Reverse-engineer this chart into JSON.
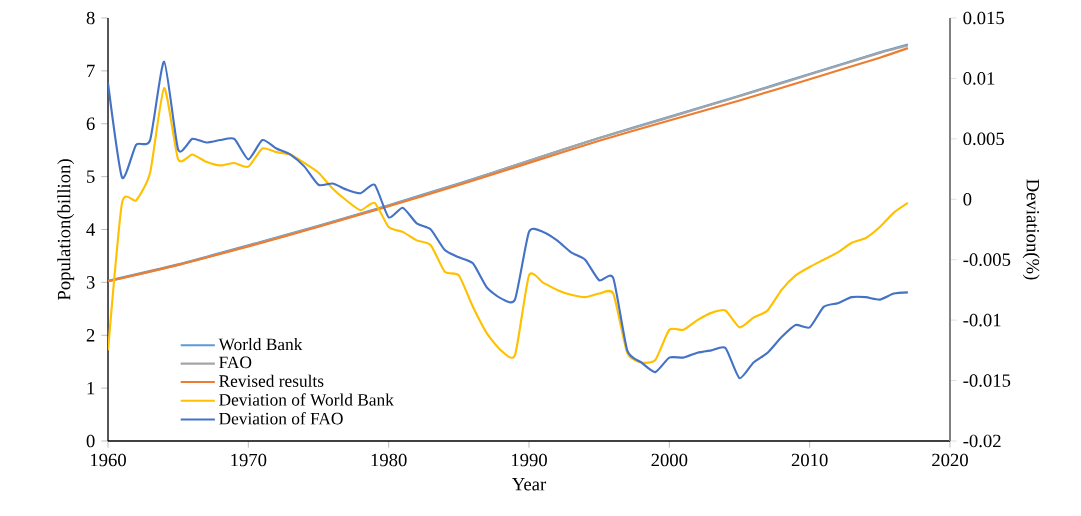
{
  "chart_data": {
    "type": "line",
    "xlabel": "Year",
    "ylabel": "Population(billion)",
    "y2label": "Deviation(%)",
    "xlim": [
      1960,
      2020
    ],
    "xticks": [
      1960,
      1970,
      1980,
      1990,
      2000,
      2010,
      2020
    ],
    "ylim": [
      0,
      8
    ],
    "yticks": [
      0,
      1,
      2,
      3,
      4,
      5,
      6,
      7,
      8
    ],
    "y2lim": [
      -0.02,
      0.015
    ],
    "y2ticks": [
      -0.02,
      -0.015,
      -0.01,
      -0.005,
      0,
      0.005,
      0.01,
      0.015
    ],
    "legend": "bottom left",
    "marker": "none",
    "line_style": "solid",
    "series": [
      {
        "name": "World Bank",
        "color": "#5b9bd5",
        "x": [
          1960,
          1965,
          1970,
          1975,
          1980,
          1985,
          1990,
          1995,
          2000,
          2005,
          2010,
          2015,
          2017
        ],
        "values": [
          3.03,
          3.34,
          3.7,
          4.07,
          4.46,
          4.87,
          5.3,
          5.73,
          6.13,
          6.53,
          6.94,
          7.35,
          7.5
        ]
      },
      {
        "name": "FAO",
        "color": "#a5a5a5",
        "x": [
          1960,
          1965,
          1970,
          1975,
          1980,
          1985,
          1990,
          1995,
          2000,
          2005,
          2010,
          2015,
          2017
        ],
        "values": [
          3.02,
          3.33,
          3.69,
          4.06,
          4.45,
          4.86,
          5.3,
          5.73,
          6.12,
          6.52,
          6.93,
          7.34,
          7.48
        ]
      },
      {
        "name": "Revised results",
        "color": "#ed7d31",
        "x": [
          1960,
          1965,
          1970,
          1975,
          1980,
          1985,
          1990,
          1995,
          2000,
          2005,
          2010,
          2015,
          2017
        ],
        "values": [
          3.02,
          3.33,
          3.68,
          4.05,
          4.44,
          4.84,
          5.26,
          5.68,
          6.06,
          6.44,
          6.84,
          7.25,
          7.43
        ]
      },
      {
        "name": "Deviation of World Bank",
        "color": "#ffc000",
        "axis": "y2",
        "x": [
          1960,
          1961,
          1962,
          1963,
          1964,
          1965,
          1966,
          1967,
          1968,
          1969,
          1970,
          1971,
          1972,
          1973,
          1974,
          1975,
          1976,
          1977,
          1978,
          1979,
          1980,
          1981,
          1982,
          1983,
          1984,
          1985,
          1986,
          1987,
          1988,
          1989,
          1990,
          1991,
          1992,
          1993,
          1994,
          1995,
          1996,
          1997,
          1998,
          1999,
          2000,
          2001,
          2002,
          2003,
          2004,
          2005,
          2006,
          2007,
          2008,
          2009,
          2010,
          2011,
          2012,
          2013,
          2014,
          2015,
          2016,
          2017
        ],
        "values": [
          -0.0125,
          -0.0003,
          -0.0001,
          0.0022,
          0.0092,
          0.0033,
          0.0037,
          0.0031,
          0.0028,
          0.003,
          0.0027,
          0.0042,
          0.0039,
          0.0037,
          0.003,
          0.0022,
          0.0009,
          -0.0001,
          -0.0009,
          -0.0003,
          -0.0023,
          -0.0027,
          -0.0034,
          -0.0038,
          -0.006,
          -0.0063,
          -0.0089,
          -0.0111,
          -0.0125,
          -0.0129,
          -0.0063,
          -0.0069,
          -0.0075,
          -0.0079,
          -0.0081,
          -0.0078,
          -0.0078,
          -0.0127,
          -0.0135,
          -0.0133,
          -0.0108,
          -0.0108,
          -0.01,
          -0.0094,
          -0.0092,
          -0.0106,
          -0.0098,
          -0.0092,
          -0.0075,
          -0.0063,
          -0.0056,
          -0.005,
          -0.0044,
          -0.0036,
          -0.0032,
          -0.0023,
          -0.0011,
          -0.0003
        ]
      },
      {
        "name": "Deviation of FAO",
        "color": "#4472c4",
        "axis": "y2",
        "x": [
          1960,
          1961,
          1962,
          1963,
          1964,
          1965,
          1966,
          1967,
          1968,
          1969,
          1970,
          1971,
          1972,
          1973,
          1974,
          1975,
          1976,
          1977,
          1978,
          1979,
          1980,
          1981,
          1982,
          1983,
          1984,
          1985,
          1986,
          1987,
          1988,
          1989,
          1990,
          1991,
          1992,
          1993,
          1994,
          1995,
          1996,
          1997,
          1998,
          1999,
          2000,
          2001,
          2002,
          2003,
          2004,
          2005,
          2006,
          2007,
          2008,
          2009,
          2010,
          2011,
          2012,
          2013,
          2014,
          2015,
          2016,
          2017
        ],
        "values": [
          0.0096,
          0.0018,
          0.0045,
          0.0049,
          0.0114,
          0.0041,
          0.005,
          0.0047,
          0.0049,
          0.005,
          0.0033,
          0.0049,
          0.0042,
          0.0037,
          0.0027,
          0.0012,
          0.0013,
          0.0008,
          0.0005,
          0.0012,
          -0.0015,
          -0.0007,
          -0.002,
          -0.0025,
          -0.0042,
          -0.0048,
          -0.0053,
          -0.0073,
          -0.0082,
          -0.0083,
          -0.0027,
          -0.0027,
          -0.0034,
          -0.0044,
          -0.005,
          -0.0067,
          -0.0065,
          -0.0125,
          -0.0135,
          -0.0143,
          -0.0131,
          -0.0131,
          -0.0127,
          -0.0125,
          -0.0123,
          -0.0148,
          -0.0135,
          -0.0127,
          -0.0114,
          -0.0104,
          -0.0106,
          -0.0089,
          -0.0086,
          -0.0081,
          -0.0081,
          -0.0083,
          -0.0078,
          -0.0077
        ]
      }
    ]
  }
}
